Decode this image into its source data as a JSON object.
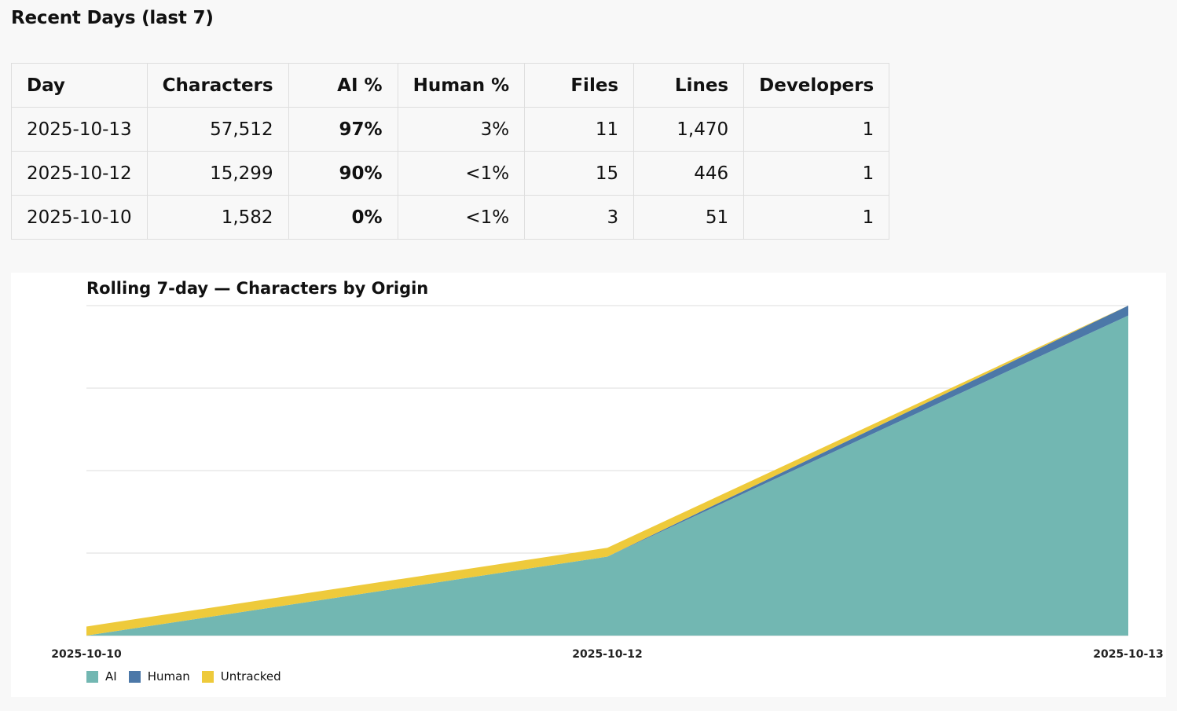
{
  "section_title": "Recent Days (last 7)",
  "table": {
    "headers": [
      "Day",
      "Characters",
      "AI %",
      "Human %",
      "Files",
      "Lines",
      "Developers"
    ],
    "rows": [
      {
        "day": "2025-10-13",
        "characters": "57,512",
        "ai_pct": "97%",
        "human_pct": "3%",
        "files": "11",
        "lines": "1,470",
        "developers": "1"
      },
      {
        "day": "2025-10-12",
        "characters": "15,299",
        "ai_pct": "90%",
        "human_pct": "<1%",
        "files": "15",
        "lines": "446",
        "developers": "1"
      },
      {
        "day": "2025-10-10",
        "characters": "1,582",
        "ai_pct": "0%",
        "human_pct": "<1%",
        "files": "3",
        "lines": "51",
        "developers": "1"
      }
    ]
  },
  "chart_data": {
    "type": "area",
    "stacked": true,
    "title": "Rolling 7-day — Characters by Origin",
    "x": [
      "2025-10-10",
      "2025-10-12",
      "2025-10-13"
    ],
    "series": [
      {
        "name": "AI",
        "color": "#72b7b2",
        "values": [
          0,
          13769,
          55787
        ]
      },
      {
        "name": "Human",
        "color": "#4c78a8",
        "values": [
          0,
          0,
          1725
        ]
      },
      {
        "name": "Untracked",
        "color": "#eeca3b",
        "values": [
          1582,
          1530,
          0
        ]
      }
    ],
    "ylim": [
      0,
      57512
    ],
    "y_gridlines": 5,
    "y_tick_labels_shown": false,
    "legend_position": "bottom-left",
    "grid": true
  }
}
